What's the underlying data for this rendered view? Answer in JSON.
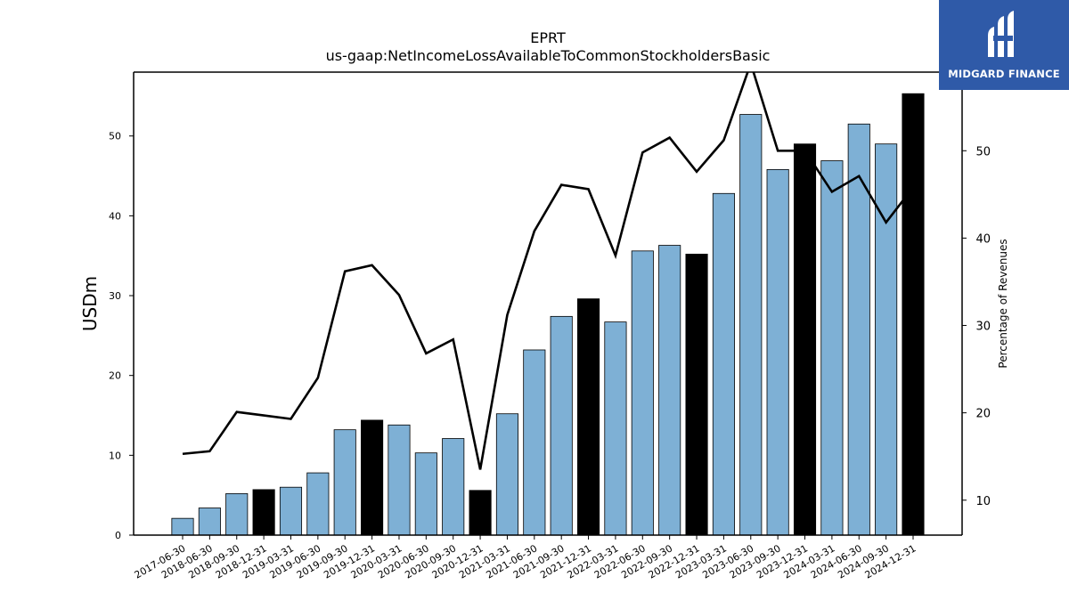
{
  "chart_data": {
    "type": "bar",
    "title": "EPRT",
    "subtitle": "us-gaap:NetIncomeLossAvailableToCommonStockholdersBasic",
    "ylabel": "USDm",
    "ylabel_right": "Percentage of Revenues",
    "ylim": [
      0,
      58
    ],
    "ylim_right": [
      6,
      59
    ],
    "yticks": [
      0,
      10,
      20,
      30,
      40,
      50
    ],
    "yticks_right": [
      10,
      20,
      30,
      40,
      50
    ],
    "categories": [
      "2017-06-30",
      "2018-06-30",
      "2018-09-30",
      "2018-12-31",
      "2019-03-31",
      "2019-06-30",
      "2019-09-30",
      "2019-12-31",
      "2020-03-31",
      "2020-06-30",
      "2020-09-30",
      "2020-12-31",
      "2021-03-31",
      "2021-06-30",
      "2021-09-30",
      "2021-12-31",
      "2022-03-31",
      "2022-06-30",
      "2022-09-30",
      "2022-12-31",
      "2023-03-31",
      "2023-06-30",
      "2023-09-30",
      "2023-12-31",
      "2024-03-31",
      "2024-06-30",
      "2024-09-30",
      "2024-12-31"
    ],
    "series": [
      {
        "type": "bar",
        "values": [
          2.1,
          3.4,
          5.2,
          5.7,
          6.0,
          7.8,
          13.2,
          14.4,
          13.8,
          10.3,
          12.1,
          5.6,
          15.2,
          23.2,
          27.4,
          29.6,
          26.7,
          35.6,
          36.3,
          35.2,
          42.8,
          52.7,
          45.8,
          49.0,
          46.9,
          51.5,
          49.0,
          55.3
        ],
        "highlight": [
          false,
          false,
          false,
          true,
          false,
          false,
          false,
          true,
          false,
          false,
          false,
          true,
          false,
          false,
          false,
          true,
          false,
          false,
          false,
          true,
          false,
          false,
          false,
          true,
          false,
          false,
          false,
          true
        ]
      },
      {
        "type": "line",
        "axis": "right",
        "values": [
          15.3,
          15.6,
          20.1,
          19.7,
          19.3,
          24.0,
          36.2,
          36.9,
          33.5,
          26.8,
          28.4,
          13.5,
          31.2,
          40.8,
          46.1,
          45.6,
          38.0,
          49.8,
          51.5,
          47.6,
          51.2,
          60.0,
          50.0,
          50.0,
          45.3,
          47.1,
          41.8,
          45.8
        ]
      }
    ],
    "colors": {
      "bar": "#7eb0d5",
      "highlight": "#000000",
      "line": "#000000"
    }
  },
  "logo": {
    "text": "MIDGARD FINANCE",
    "background": "#2f5aa8"
  }
}
